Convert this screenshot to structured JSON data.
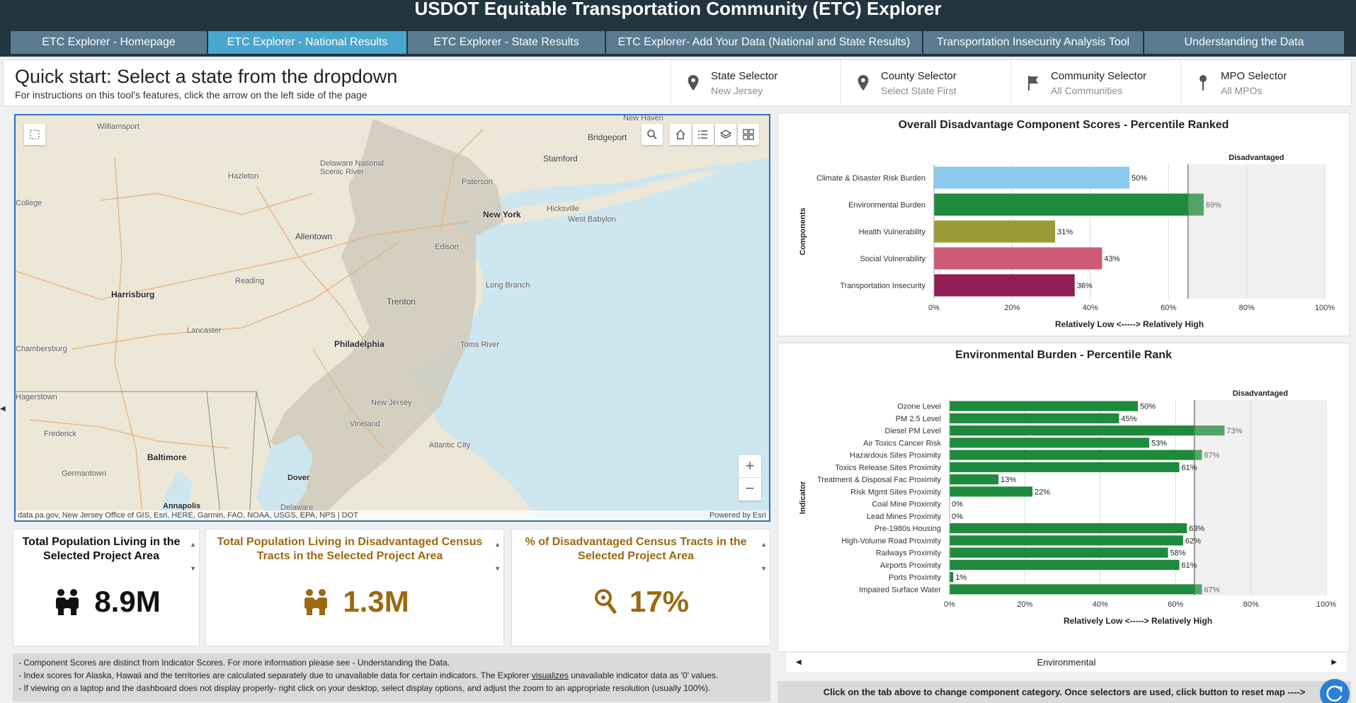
{
  "app": {
    "title": "USDOT Equitable Transportation Community (ETC) Explorer"
  },
  "tabs": [
    {
      "label": "ETC Explorer - Homepage",
      "active": false
    },
    {
      "label": "ETC Explorer - National Results",
      "active": true
    },
    {
      "label": "ETC Explorer - State Results",
      "active": false
    },
    {
      "label": "ETC Explorer- Add Your Data (National and State Results)",
      "active": false
    },
    {
      "label": "Transportation Insecurity Analysis Tool",
      "active": false
    },
    {
      "label": "Understanding the Data",
      "active": false
    }
  ],
  "quickstart": {
    "title": "Quick start: Select a state from the dropdown",
    "subtitle": "For instructions on this tool's features, click the arrow on the left side of the page"
  },
  "selectors": [
    {
      "label": "State Selector",
      "value": "New Jersey",
      "icon": "map-pin-icon"
    },
    {
      "label": "County Selector",
      "value": "Select State First",
      "icon": "map-pin-icon"
    },
    {
      "label": "Community Selector",
      "value": "All Communities",
      "icon": "flag-icon"
    },
    {
      "label": "MPO Selector",
      "value": "All MPOs",
      "icon": "pushpin-icon"
    }
  ],
  "map": {
    "attribution": "data.pa.gov, New Jersey Office of GIS, Esri, HERE, Garmin, FAO, NOAA, USGS, EPA, NPS | DOT",
    "powered_by": "Powered by Esri",
    "labels": [
      "Williamsport",
      "Hazleton",
      "Delaware National Scenic River",
      "Allentown",
      "Reading",
      "Harrisburg",
      "Lancaster",
      "Chambersburg",
      "Philadelphia",
      "Trenton",
      "New York",
      "Paterson",
      "Bridgeport",
      "Stamford",
      "Hicksville",
      "West Babylon",
      "Long Branch",
      "Toms River",
      "New Jersey",
      "Vineland",
      "Atlantic City",
      "Baltimore",
      "Frederick",
      "Germantown",
      "Annapolis",
      "Dover",
      "Delaware",
      "Edison",
      "Hagerstown",
      "College",
      "New Haven"
    ],
    "zoom_in": "+",
    "zoom_out": "−"
  },
  "cards": [
    {
      "title": "Total Population Living in the Selected Project Area",
      "value": "8.9M",
      "color": "#111111"
    },
    {
      "title": "Total Population Living in Disadvantaged Census Tracts in the Selected Project Area",
      "value": "1.3M",
      "color": "#9a6a12"
    },
    {
      "title": "% of Disadvantaged Census Tracts in the Selected Project Area",
      "value": "17%",
      "color": "#9a6a12"
    }
  ],
  "notes": {
    "line1": "- Component Scores are distinct from Indicator Scores. For more information please see - Understanding the Data.",
    "line2_pre": "- Index scores for Alaska, Hawaii and the territories are calculated separately due to unavailable data for certain indicators. The Explorer ",
    "line2_link": "visualizes",
    "line2_post": " unavailable indicator data as '0' values.",
    "line3": "- If viewing on a laptop and the dashboard does not display properly- right click on your desktop, select display options, and adjust the zoom to an appropriate resolution (usually 100%)."
  },
  "chart_data": [
    {
      "type": "bar",
      "orientation": "horizontal",
      "title": "Overall Disadvantage Component Scores - Percentile Ranked",
      "xlabel": "Relatively Low <-----> Relatively High",
      "ylabel": "Components",
      "xlim": [
        0,
        100
      ],
      "ticks": [
        "0%",
        "20%",
        "40%",
        "60%",
        "80%",
        "100%"
      ],
      "threshold": 65,
      "threshold_label": "Disadvantaged",
      "categories": [
        "Climate & Disaster Risk Burden",
        "Environmental Burden",
        "Health Vulnerability",
        "Social Vulnerability",
        "Transportation Insecurity"
      ],
      "values": [
        50,
        69,
        31,
        43,
        36
      ],
      "colors": [
        "#8ccbee",
        "#1d8a3c",
        "#9b9b35",
        "#cf5a76",
        "#8f1e55"
      ]
    },
    {
      "type": "bar",
      "orientation": "horizontal",
      "title": "Environmental Burden - Percentile Rank",
      "xlabel": "Relatively Low <-----> Relatively High",
      "ylabel": "Indicator",
      "xlim": [
        0,
        100
      ],
      "ticks": [
        "0%",
        "20%",
        "40%",
        "60%",
        "80%",
        "100%"
      ],
      "threshold": 65,
      "threshold_label": "Disadvantaged",
      "categories": [
        "Ozone Level",
        "PM 2.5 Level",
        "Diesel PM Level",
        "Air Toxics Cancer Risk",
        "Hazardous Sites Proximity",
        "Toxics Release Sites Proximity",
        "Treatment & Disposal Fac Proximity",
        "Risk Mgmt Sites Proximity",
        "Coal Mine Proximity",
        "Lead Mines Proximity",
        "Pre-1980s Housing",
        "High-Volume Road Proximity",
        "Railways Proximity",
        "Airports Proximity",
        "Ports Proximity",
        "Impaired Surface Water"
      ],
      "values": [
        50,
        45,
        73,
        53,
        67,
        61,
        13,
        22,
        0,
        0,
        63,
        62,
        58,
        61,
        1,
        67
      ],
      "colors": [
        "#1d8a3c"
      ]
    }
  ],
  "chart_nav": {
    "label": "Environmental"
  },
  "footer": {
    "text": "Click on the tab above to change component category. Once selectors are used, click button to reset map ---->"
  }
}
